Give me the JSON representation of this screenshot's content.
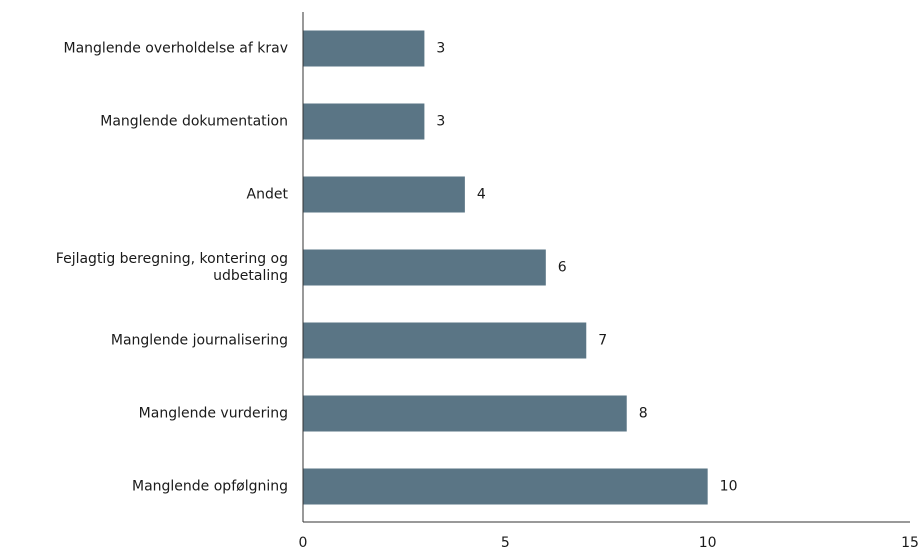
{
  "chart_data": {
    "type": "bar",
    "orientation": "horizontal",
    "categories": [
      "Manglende overholdelse af krav",
      "Manglende dokumentation",
      "Andet",
      "Fejlagtig beregning, kontering og udbetaling",
      "Manglende journalisering",
      "Manglende vurdering",
      "Manglende opfølgning"
    ],
    "category_lines": [
      [
        "Manglende overholdelse af krav"
      ],
      [
        "Manglende dokumentation"
      ],
      [
        "Andet"
      ],
      [
        "Fejlagtig beregning, kontering og",
        "udbetaling"
      ],
      [
        "Manglende journalisering"
      ],
      [
        "Manglende vurdering"
      ],
      [
        "Manglende opfølgning"
      ]
    ],
    "values": [
      3,
      3,
      4,
      6,
      7,
      8,
      10
    ],
    "data_labels": [
      "3",
      "3",
      "4",
      "6",
      "7",
      "8",
      "10"
    ],
    "xlim": [
      0,
      15
    ],
    "xticks": [
      0,
      5,
      10,
      15
    ],
    "title": "",
    "xlabel": "",
    "ylabel": "",
    "grid": false,
    "legend": "none",
    "bar_color": "#5a7585",
    "axis_color": "#333333"
  }
}
